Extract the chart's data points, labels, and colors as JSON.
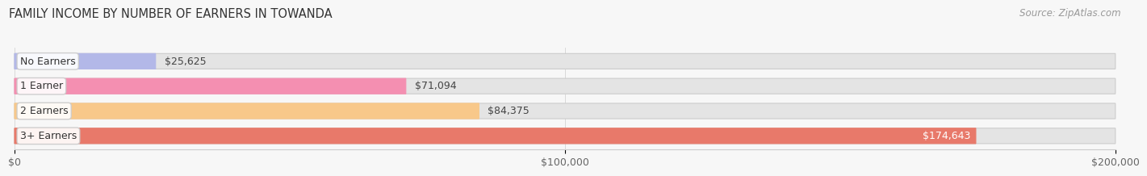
{
  "title": "FAMILY INCOME BY NUMBER OF EARNERS IN TOWANDA",
  "source": "Source: ZipAtlas.com",
  "categories": [
    "No Earners",
    "1 Earner",
    "2 Earners",
    "3+ Earners"
  ],
  "values": [
    25625,
    71094,
    84375,
    174643
  ],
  "bar_colors": [
    "#b3b8e8",
    "#f48fb1",
    "#f8c88a",
    "#e8796a"
  ],
  "background_color": "#f7f7f7",
  "bar_bg_color": "#e4e4e4",
  "xlim": [
    0,
    200000
  ],
  "xticks": [
    0,
    100000,
    200000
  ],
  "xtick_labels": [
    "$0",
    "$100,000",
    "$200,000"
  ],
  "title_fontsize": 10.5,
  "source_fontsize": 8.5,
  "label_fontsize": 9,
  "value_fontsize": 9,
  "bar_height": 0.62,
  "value_inside_bar_threshold": 150000,
  "value_colors": [
    "#444444",
    "#444444",
    "#444444",
    "#ffffff"
  ]
}
